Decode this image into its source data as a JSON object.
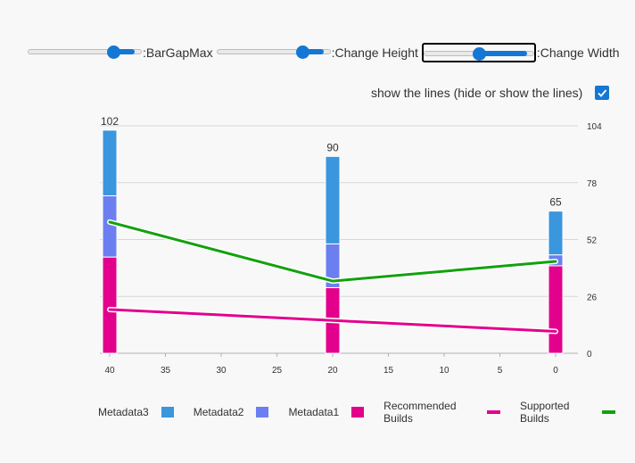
{
  "controls": [
    {
      "label": ":BarGapMax",
      "value": 0.75,
      "focused": false
    },
    {
      "label": ":Change Height",
      "value": 0.75,
      "focused": false
    },
    {
      "label": ":Change Width",
      "value": 0.5,
      "focused": true
    }
  ],
  "toggle": {
    "label": "show the lines (hide or show the lines)",
    "checked": true
  },
  "chart_data": {
    "type": "bar",
    "stacked": true,
    "x": [
      40,
      20,
      0
    ],
    "xlim": [
      41,
      -1
    ],
    "xticks": [
      40,
      35,
      30,
      25,
      20,
      15,
      10,
      5,
      0
    ],
    "ylim": [
      0,
      104
    ],
    "yticks": [
      0,
      26,
      52,
      78,
      104
    ],
    "grid": true,
    "legend_position": "bottom",
    "totals": [
      102,
      90,
      65
    ],
    "series": [
      {
        "name": "Metadata1",
        "kind": "bar",
        "color": "#e3008c",
        "values": [
          44,
          30,
          40
        ]
      },
      {
        "name": "Metadata2",
        "kind": "bar",
        "color": "#6c7ff0",
        "values": [
          28,
          20,
          5
        ]
      },
      {
        "name": "Metadata3",
        "kind": "bar",
        "color": "#3a96dd",
        "values": [
          30,
          40,
          20
        ]
      },
      {
        "name": "Recommended Builds",
        "kind": "line",
        "color": "#e3008c",
        "values": [
          20,
          15,
          10
        ]
      },
      {
        "name": "Supported Builds",
        "kind": "line",
        "color": "#13a10e",
        "values": [
          60,
          33,
          42
        ]
      }
    ],
    "legend_order": [
      "Metadata3",
      "Metadata2",
      "Metadata1",
      "Recommended Builds",
      "Supported Builds"
    ]
  }
}
